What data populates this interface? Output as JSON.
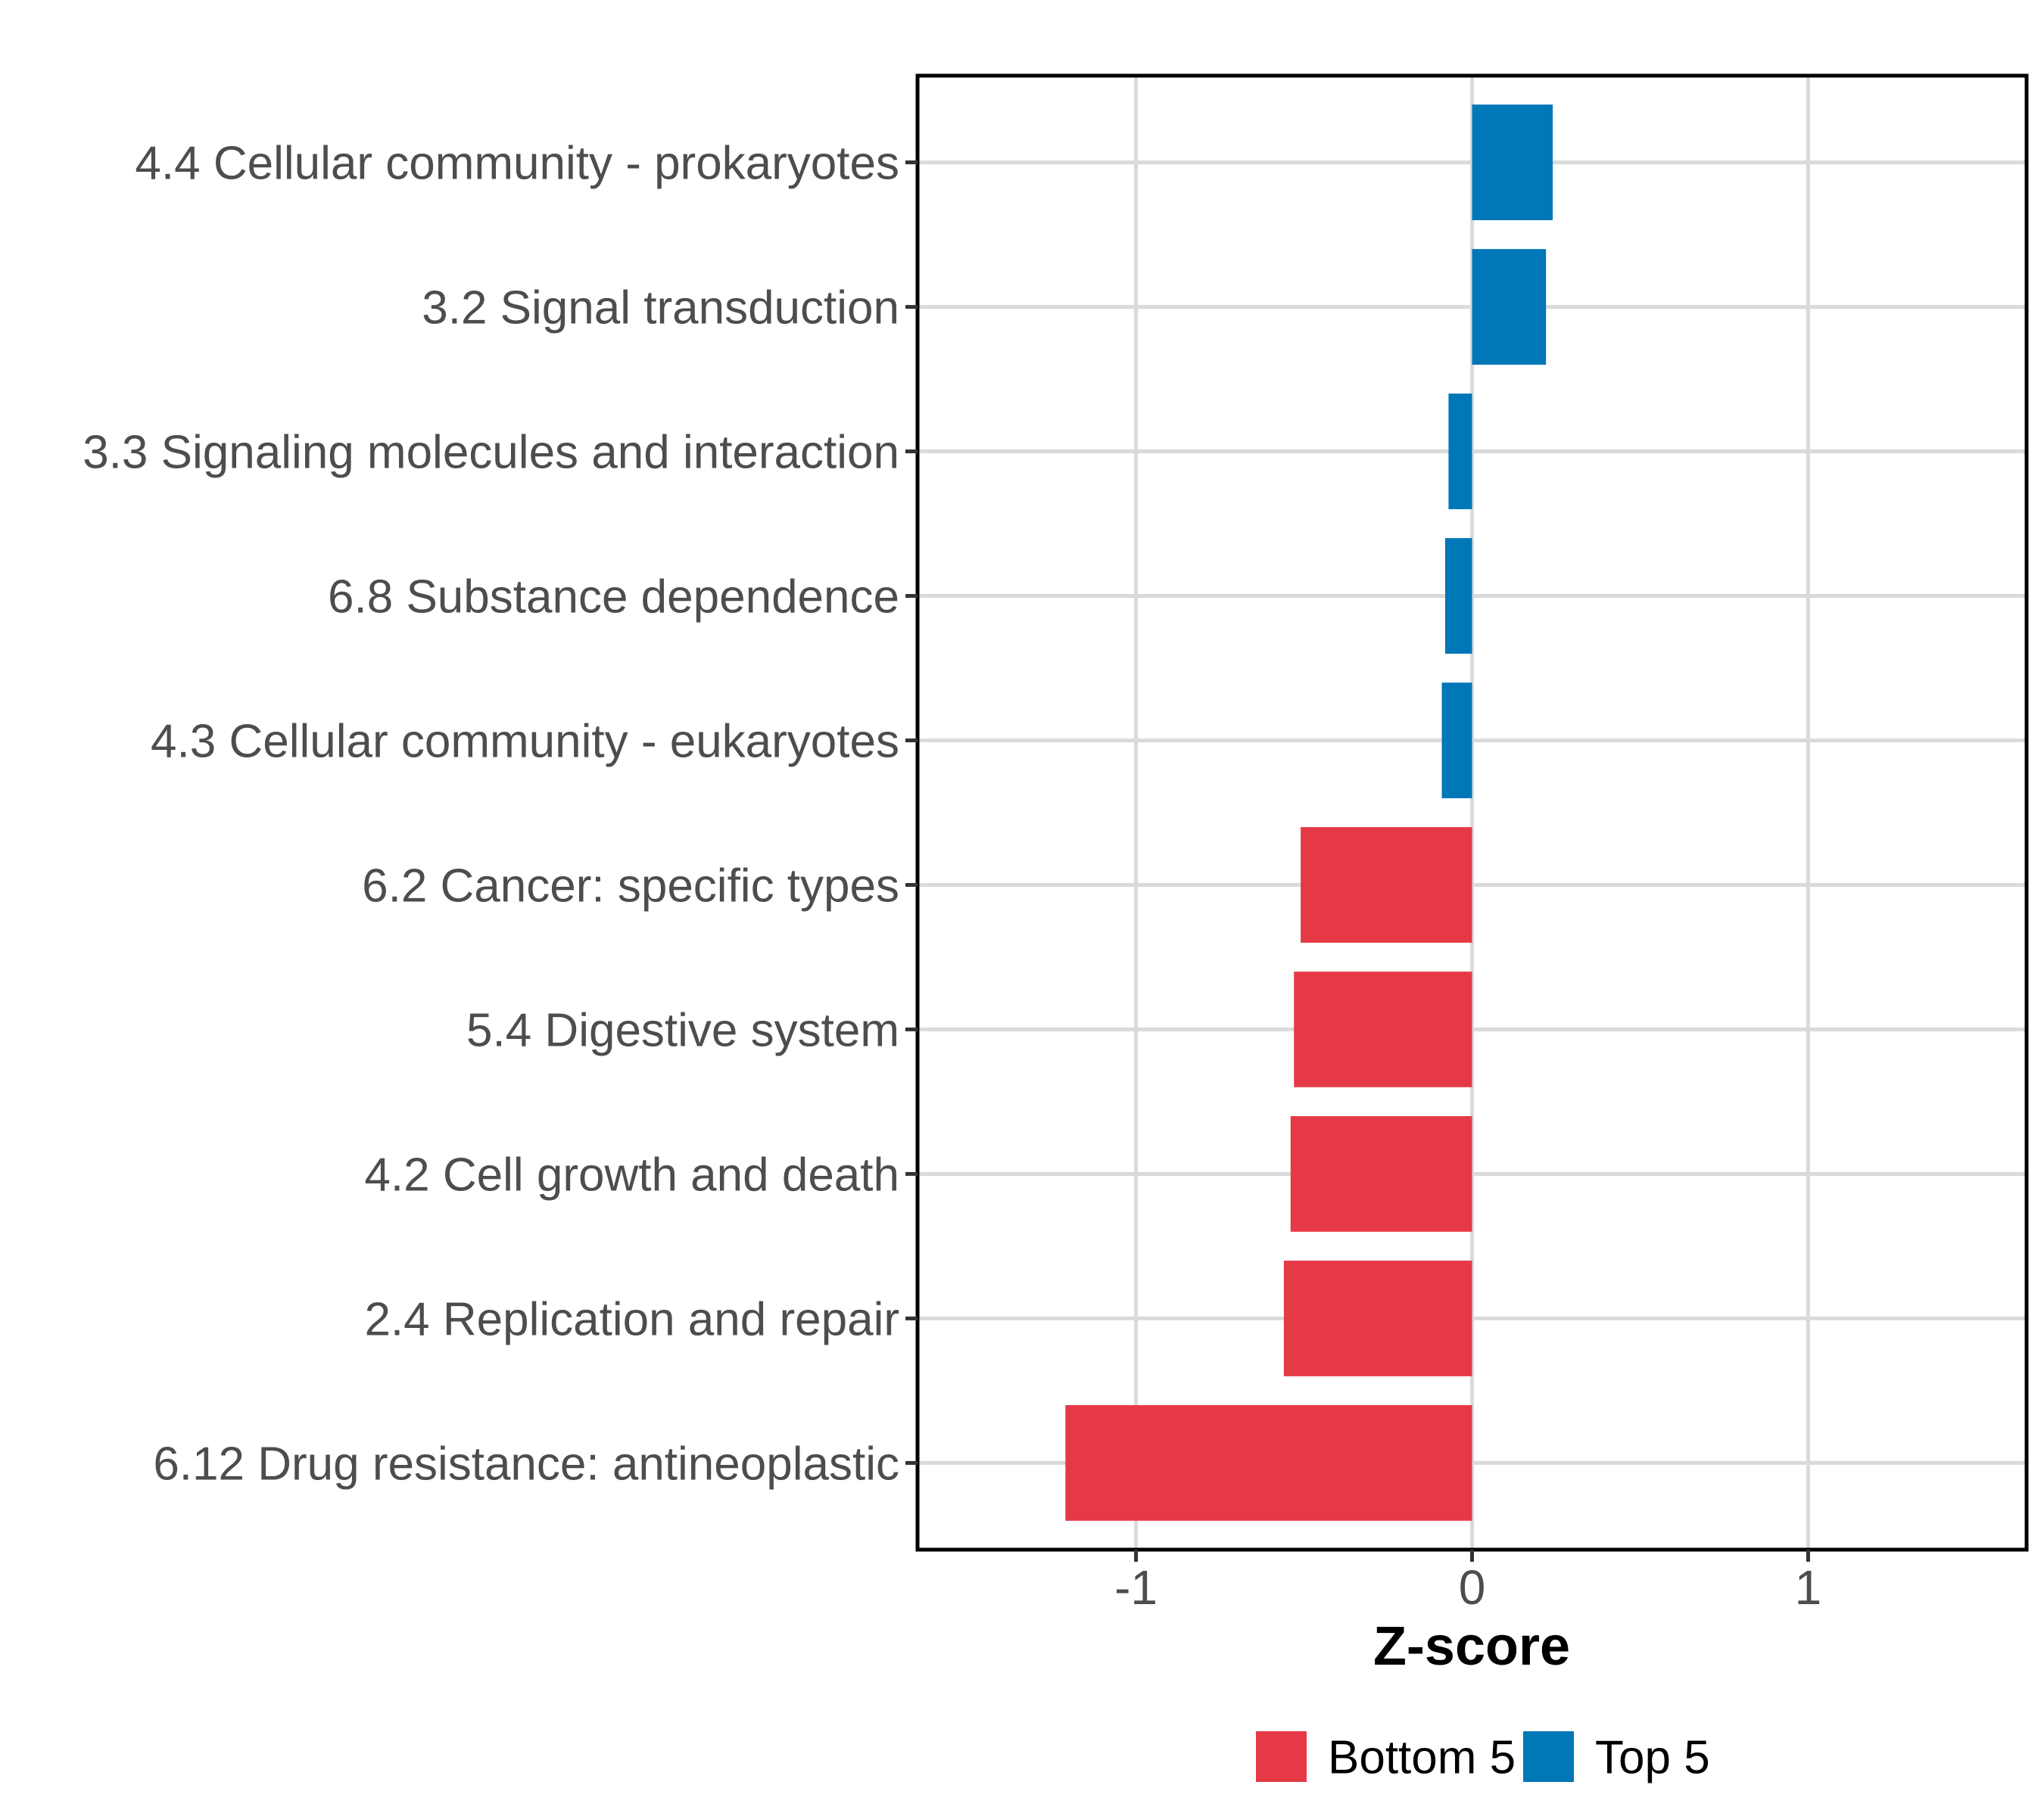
{
  "chart_data": {
    "type": "bar",
    "orientation": "horizontal",
    "title": "",
    "xlabel": "Z-score",
    "ylabel": "",
    "xlim": [
      -1.65,
      1.65
    ],
    "xticks": [
      -1,
      0,
      1
    ],
    "xtick_labels": [
      "-1",
      "0",
      "1"
    ],
    "grid": true,
    "categories": [
      "4.4 Cellular community - prokaryotes",
      "3.2 Signal transduction",
      "3.3 Signaling molecules and interaction",
      "6.8 Substance dependence",
      "4.3 Cellular community - eukaryotes",
      "6.2 Cancer: specific types",
      "5.4 Digestive system",
      "4.2 Cell growth and death",
      "2.4 Replication and repair",
      "6.12 Drug resistance: antineoplastic"
    ],
    "values": [
      0.24,
      0.22,
      -0.07,
      -0.08,
      -0.09,
      -0.51,
      -0.53,
      -0.54,
      -0.56,
      -1.21
    ],
    "groups": [
      "Top 5",
      "Top 5",
      "Top 5",
      "Top 5",
      "Top 5",
      "Bottom 5",
      "Bottom 5",
      "Bottom 5",
      "Bottom 5",
      "Bottom 5"
    ],
    "legend": {
      "position": "bottom",
      "entries": [
        {
          "label": "Bottom 5",
          "color": "#e63946"
        },
        {
          "label": "Top 5",
          "color": "#0077b6"
        }
      ]
    }
  }
}
